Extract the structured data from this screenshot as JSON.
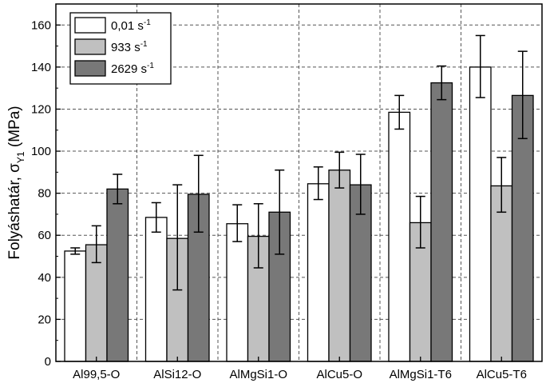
{
  "chart_data": {
    "type": "bar",
    "ylabel": "Folyáshatár, σ",
    "ylabel_sub": "Y1",
    "ylabel_unit": " (MPa)",
    "ylim": [
      0,
      170
    ],
    "yticks": [
      0,
      20,
      40,
      60,
      80,
      100,
      120,
      140,
      160
    ],
    "grid": true,
    "legend_position": "top-left",
    "categories": [
      "Al99,5-O",
      "AlSi12-O",
      "AlMgSi1-O",
      "AlCu5-O",
      "AlMgSi1-T6",
      "AlCu5-T6"
    ],
    "series": [
      {
        "name": "0,01 s",
        "name_sup": "-1",
        "color": "#ffffff",
        "values": [
          52.5,
          68.5,
          65.5,
          84.5,
          118.5,
          140
        ],
        "error_low": [
          51,
          61.5,
          57,
          77,
          110.5,
          125.5
        ],
        "error_high": [
          54,
          75.5,
          74.5,
          92.5,
          126.5,
          155
        ]
      },
      {
        "name": "933 s",
        "name_sup": "-1",
        "color": "#c0c0c0",
        "values": [
          55.5,
          58.5,
          59.5,
          91,
          66,
          83.5
        ],
        "error_low": [
          47,
          34,
          44.5,
          82.5,
          54,
          71
        ],
        "error_high": [
          64.5,
          84,
          75,
          99.5,
          78.5,
          97
        ]
      },
      {
        "name": "2629 s",
        "name_sup": "-1",
        "color": "#787878",
        "values": [
          82,
          79.5,
          71,
          84,
          132.5,
          126.5
        ],
        "error_low": [
          75,
          61.5,
          51,
          70,
          124.5,
          106
        ],
        "error_high": [
          89,
          98,
          91,
          98.5,
          140.5,
          147.5
        ]
      }
    ]
  }
}
